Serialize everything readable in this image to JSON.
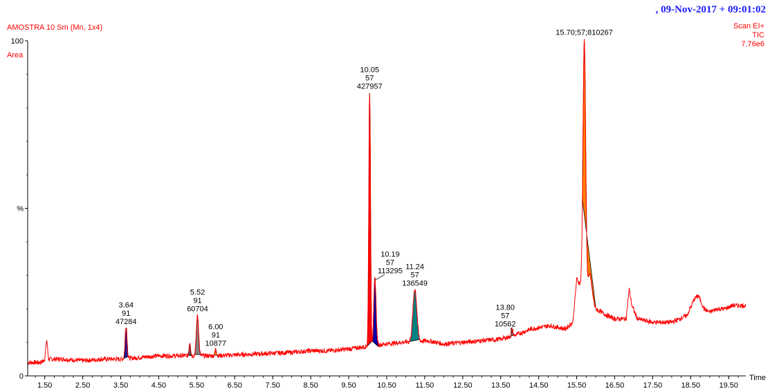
{
  "header": {
    "sample_title": "AMOSTRA 10 Sm (Mn, 1x4)",
    "y_mode": "Area",
    "date_stamp": ", 09-Nov-2017 + 09:01:02",
    "scan": "Scan EI+",
    "trace": "TIC",
    "max_intensity": "7.76e6"
  },
  "colors": {
    "trace": "#ff0000",
    "header_text": "#ff0000",
    "date_text": "#1a1aff",
    "axis": "#000000"
  },
  "chart_data": {
    "type": "line",
    "title": "AMOSTRA 10 Sm (Mn, 1x4)",
    "xlabel": "Time",
    "ylabel": "%",
    "xlim": [
      1.05,
      19.95
    ],
    "ylim": [
      0,
      100
    ],
    "x_ticks": [
      "1.50",
      "2.50",
      "3.50",
      "4.50",
      "5.50",
      "6.50",
      "7.50",
      "8.50",
      "9.50",
      "10.50",
      "11.50",
      "12.50",
      "13.50",
      "14.50",
      "15.50",
      "16.50",
      "17.50",
      "18.50",
      "19.50"
    ],
    "y_ticks": [
      "0",
      "%",
      "100"
    ],
    "baseline": [
      [
        1.05,
        4
      ],
      [
        1.4,
        4
      ],
      [
        1.5,
        5
      ],
      [
        1.55,
        11
      ],
      [
        1.6,
        5
      ],
      [
        2.0,
        5
      ],
      [
        2.5,
        4.5
      ],
      [
        3.0,
        5
      ],
      [
        3.5,
        5
      ],
      [
        4.5,
        6
      ],
      [
        5.2,
        6
      ],
      [
        6.0,
        6
      ],
      [
        7.0,
        6.5
      ],
      [
        8.0,
        7
      ],
      [
        8.5,
        7.5
      ],
      [
        9.0,
        7.5
      ],
      [
        9.5,
        8
      ],
      [
        9.8,
        8.5
      ],
      [
        10.45,
        9.5
      ],
      [
        10.9,
        10
      ],
      [
        11.6,
        10.5
      ],
      [
        12.0,
        9.5
      ],
      [
        12.5,
        10
      ],
      [
        13.0,
        10.5
      ],
      [
        13.5,
        11
      ],
      [
        13.85,
        12
      ],
      [
        14.3,
        14
      ],
      [
        14.8,
        15
      ],
      [
        15.2,
        14
      ],
      [
        15.4,
        16
      ],
      [
        15.5,
        29
      ],
      [
        15.6,
        27
      ],
      [
        15.85,
        25
      ],
      [
        16.0,
        20
      ],
      [
        16.3,
        18
      ],
      [
        16.5,
        17
      ],
      [
        16.8,
        17
      ],
      [
        16.88,
        26
      ],
      [
        16.95,
        21
      ],
      [
        17.1,
        17
      ],
      [
        17.5,
        16
      ],
      [
        18.0,
        16
      ],
      [
        18.4,
        18
      ],
      [
        18.6,
        23
      ],
      [
        18.7,
        24
      ],
      [
        18.85,
        20
      ],
      [
        19.0,
        19
      ],
      [
        19.2,
        20
      ],
      [
        19.4,
        20
      ],
      [
        19.6,
        21
      ],
      [
        19.8,
        21
      ],
      [
        19.95,
        21
      ]
    ],
    "peaks": [
      {
        "rt": 1.55,
        "height": 11,
        "width": 0.04,
        "labeled": false
      },
      {
        "rt": 3.64,
        "height": 15,
        "width": 0.025,
        "labeled": true,
        "label": [
          "3.64",
          "91",
          "47284"
        ],
        "fill": "#1a1a8c",
        "start": 3.58,
        "end": 3.72
      },
      {
        "rt": 5.32,
        "height": 10,
        "width": 0.02,
        "labeled": false,
        "fill": "#555555",
        "start": 5.27,
        "end": 5.37
      },
      {
        "rt": 5.52,
        "height": 18,
        "width": 0.03,
        "labeled": true,
        "label": [
          "5.52",
          "91",
          "60704"
        ],
        "fill": "#808080",
        "start": 5.44,
        "end": 5.62
      },
      {
        "rt": 6.0,
        "height": 8,
        "width": 0.02,
        "labeled": true,
        "label": [
          "6.00",
          "91",
          "10877"
        ],
        "fill": "#ff7f00",
        "start": 5.94,
        "end": 6.06
      },
      {
        "rt": 10.05,
        "height": 85,
        "width": 0.022,
        "labeled": true,
        "label": [
          "10.05",
          "57",
          "427957"
        ],
        "fill": "#ff0000",
        "start": 9.98,
        "end": 10.12
      },
      {
        "rt": 10.19,
        "height": 29,
        "width": 0.03,
        "labeled": true,
        "label": [
          "10.19",
          "57",
          "113295"
        ],
        "fill": "#0000aa",
        "start": 10.12,
        "end": 10.28
      },
      {
        "rt": 11.24,
        "height": 26,
        "width": 0.05,
        "labeled": true,
        "label": [
          "11.24",
          "57",
          "136549"
        ],
        "fill": "#008080",
        "start": 11.1,
        "end": 11.36
      },
      {
        "rt": 13.8,
        "height": 14,
        "width": 0.02,
        "labeled": true,
        "label": [
          "13.80",
          "57",
          "10562"
        ],
        "fill": "#808080",
        "start": 13.74,
        "end": 13.86
      },
      {
        "rt": 15.7,
        "height": 100,
        "width": 0.035,
        "labeled": true,
        "label": [
          "15.70;57;810267"
        ],
        "fill": "#ff7f00",
        "start": 15.65,
        "end": 16.0
      },
      {
        "rt": 15.85,
        "height": 30,
        "width": 0.05,
        "labeled": false
      }
    ]
  }
}
